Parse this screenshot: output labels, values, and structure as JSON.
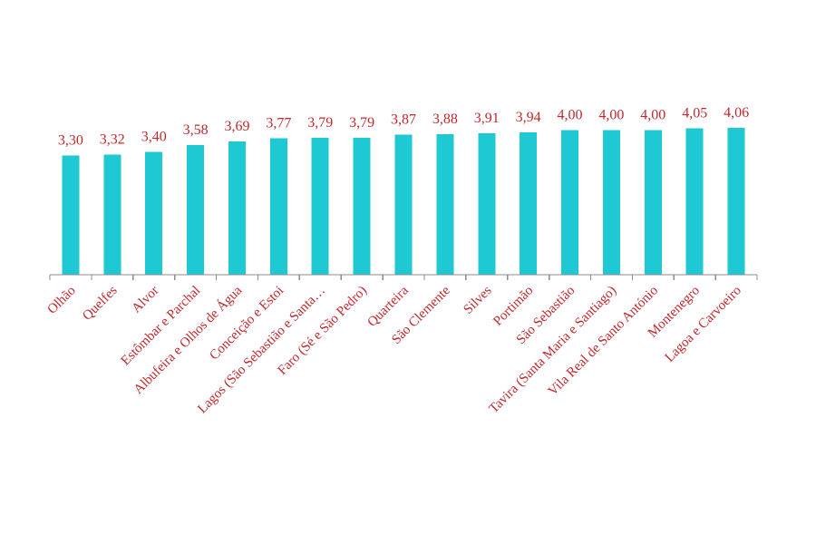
{
  "chart_data": {
    "type": "bar",
    "categories": [
      "Olhão",
      "Quelfes",
      "Alvor",
      "Estômbar e Parchal",
      "Albufeira e Olhos de Água",
      "Conceição e Estoi",
      "Lagos (São Sebastião e Santa…",
      "Faro (Sé e São Pedro)",
      "Quarteira",
      "São Clemente",
      "Silves",
      "Portimão",
      "São Sebastião",
      "Tavira (Santa Maria e Santiago)",
      "Vila Real de Santo António",
      "Montenegro",
      "Lagoa e Carvoeiro"
    ],
    "values": [
      3.3,
      3.32,
      3.4,
      3.58,
      3.69,
      3.77,
      3.79,
      3.79,
      3.87,
      3.88,
      3.91,
      3.94,
      4.0,
      4.0,
      4.0,
      4.05,
      4.06
    ],
    "value_labels": [
      "3,30",
      "3,32",
      "3,40",
      "3,58",
      "3,69",
      "3,77",
      "3,79",
      "3,79",
      "3,87",
      "3,88",
      "3,91",
      "3,94",
      "4,00",
      "4,00",
      "4,00",
      "4,05",
      "4,06"
    ],
    "title": "",
    "xlabel": "",
    "ylabel": "",
    "ylim": [
      0,
      4.06
    ],
    "grid": false,
    "legend": "none",
    "colors": {
      "bar": "#1ec9d4",
      "label": "#c0282d",
      "axis": "#8c8c8c"
    }
  }
}
